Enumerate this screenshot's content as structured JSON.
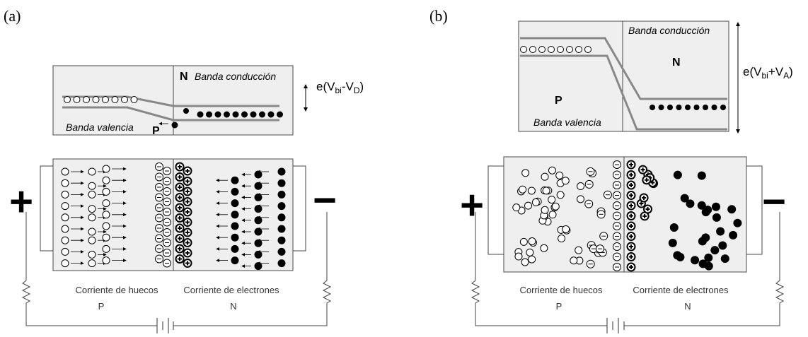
{
  "panels": [
    {
      "label": "(a)",
      "band": {
        "n": "N",
        "conduction": "Banda conducción",
        "valence": "Banda valencia",
        "p": "P",
        "energy": {
          "a": "e(V",
          "b": "bi",
          "c": "-V",
          "d": "D",
          "e": ")"
        }
      },
      "circuit": {
        "plus": "+",
        "minus": "−",
        "hole_current": "Corriente de huecos",
        "electron_current": "Corriente de electrones",
        "p": "P",
        "n": "N"
      }
    },
    {
      "label": "(b)",
      "band": {
        "n": "N",
        "conduction": "Banda conducción",
        "valence": "Banda valencia",
        "p": "P",
        "energy": {
          "a": "e(V",
          "b": "bi",
          "c": "+V",
          "d": "A",
          "e": ")"
        }
      },
      "circuit": {
        "plus": "+",
        "minus": "−",
        "hole_current": "Corriente de huecos",
        "electron_current": "Corriente de electrones",
        "p": "P",
        "n": "N"
      }
    }
  ]
}
